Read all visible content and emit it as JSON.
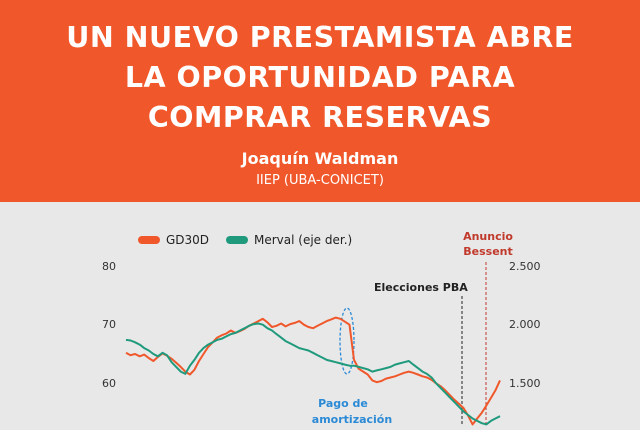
{
  "header": {
    "title_lines": [
      "UN NUEVO PRESTAMISTA ABRE",
      "LA OPORTUNIDAD PARA",
      "COMPRAR RESERVAS"
    ],
    "author": "Joaquín Waldman",
    "affiliation": "IIEP (UBA-CONICET)"
  },
  "colors": {
    "banner": "#f0582b",
    "gd30d": "#f0582b",
    "merval": "#1f9a7c",
    "annotation_blue": "#2b8ad6",
    "annotation_red": "#c0392b"
  },
  "chart_data": {
    "type": "line",
    "title": "",
    "xlabel": "",
    "ylabel": "",
    "ylim": [
      50,
      80
    ],
    "y2lim": [
      1000,
      2500
    ],
    "yticks": [
      "80",
      "70",
      "60"
    ],
    "y2ticks": [
      "2.500",
      "2.000",
      "1.500"
    ],
    "grid": false,
    "legend_position": "top-left",
    "series": [
      {
        "name": "GD30D",
        "axis": "left",
        "values": [
          65.2,
          64.8,
          65.0,
          64.6,
          64.9,
          64.3,
          63.8,
          64.5,
          65.1,
          64.7,
          64.2,
          63.5,
          62.8,
          62.0,
          61.5,
          62.3,
          63.8,
          65.0,
          66.2,
          67.0,
          67.8,
          68.2,
          68.5,
          69.0,
          68.6,
          68.9,
          69.3,
          69.8,
          70.2,
          70.6,
          71.0,
          70.4,
          69.6,
          69.8,
          70.2,
          69.7,
          70.1,
          70.3,
          70.6,
          70.0,
          69.6,
          69.4,
          69.8,
          70.2,
          70.6,
          70.9,
          71.2,
          71.0,
          70.5,
          70.0,
          64.0,
          62.5,
          62.0,
          61.5,
          60.5,
          60.2,
          60.4,
          60.8,
          61.0,
          61.2,
          61.5,
          61.8,
          62.0,
          61.8,
          61.5,
          61.2,
          61.0,
          60.6,
          60.0,
          59.5,
          58.8,
          58.0,
          57.2,
          56.5,
          55.8,
          54.5,
          53.0,
          54.0,
          55.0,
          56.2,
          57.5,
          58.8,
          60.5
        ]
      },
      {
        "name": "Merval (eje der.)",
        "axis": "right",
        "values": [
          1870,
          1865,
          1850,
          1830,
          1800,
          1780,
          1750,
          1730,
          1760,
          1740,
          1680,
          1640,
          1600,
          1580,
          1650,
          1700,
          1760,
          1800,
          1830,
          1850,
          1870,
          1880,
          1900,
          1920,
          1930,
          1950,
          1970,
          1990,
          2005,
          2010,
          2000,
          1970,
          1950,
          1920,
          1890,
          1860,
          1840,
          1820,
          1800,
          1790,
          1780,
          1760,
          1740,
          1720,
          1700,
          1690,
          1680,
          1670,
          1660,
          1650,
          1650,
          1640,
          1630,
          1620,
          1600,
          1610,
          1620,
          1630,
          1640,
          1660,
          1670,
          1680,
          1690,
          1660,
          1630,
          1600,
          1580,
          1550,
          1500,
          1460,
          1420,
          1380,
          1340,
          1300,
          1260,
          1230,
          1200,
          1180,
          1160,
          1150,
          1180,
          1200,
          1220
        ]
      }
    ],
    "annotations": [
      {
        "text_lines": [
          "Pago de",
          "amortización"
        ],
        "color": "#2b8ad6"
      },
      {
        "text_lines": [
          "Elecciones PBA"
        ],
        "color": "#222222"
      },
      {
        "text_lines": [
          "Anuncio",
          "Bessent"
        ],
        "color": "#c0392b"
      }
    ]
  }
}
